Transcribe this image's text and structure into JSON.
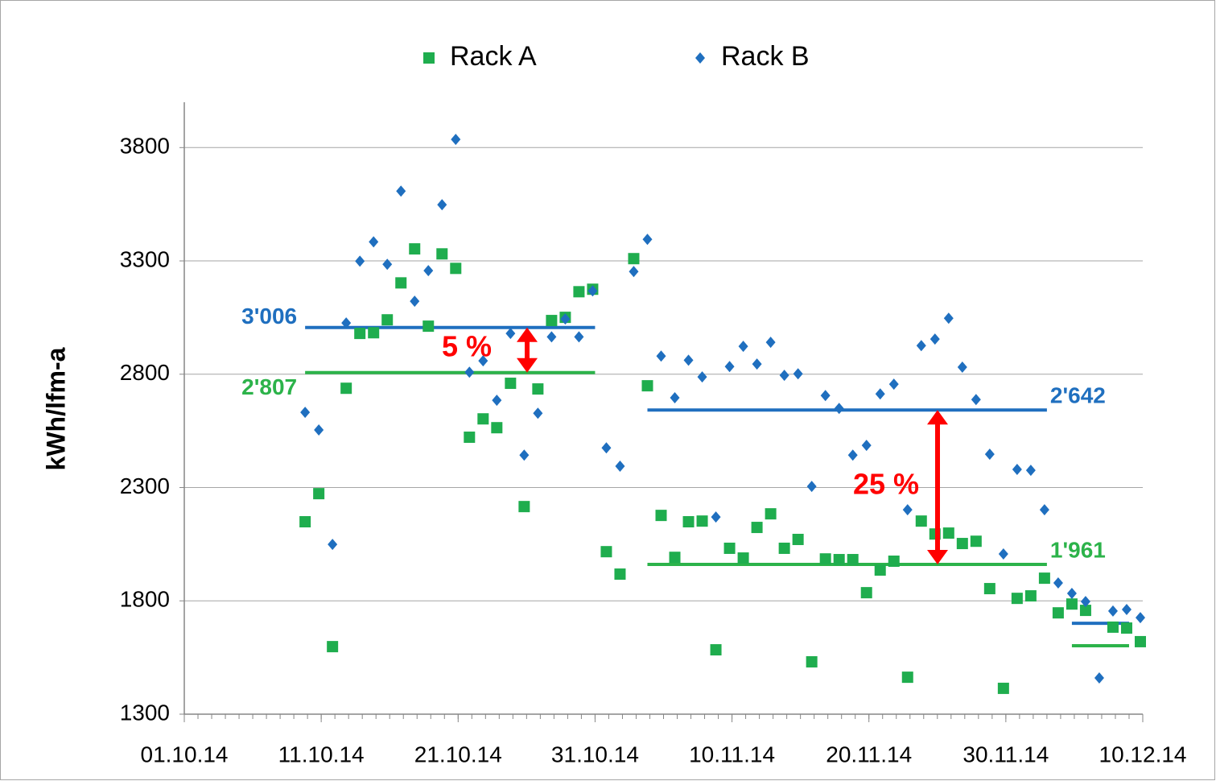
{
  "chart_data": {
    "type": "scatter",
    "y_label": "kWh/lfm-a",
    "x": [
      "10.10.14",
      "11.10.14",
      "12.10.14",
      "13.10.14",
      "14.10.14",
      "15.10.14",
      "16.10.14",
      "17.10.14",
      "18.10.14",
      "19.10.14",
      "20.10.14",
      "21.10.14",
      "22.10.14",
      "23.10.14",
      "24.10.14",
      "25.10.14",
      "26.10.14",
      "27.10.14",
      "28.10.14",
      "29.10.14",
      "30.10.14",
      "31.10.14",
      "01.11.14",
      "02.11.14",
      "03.11.14",
      "04.11.14",
      "05.11.14",
      "06.11.14",
      "07.11.14",
      "08.11.14",
      "09.11.14",
      "10.11.14",
      "11.11.14",
      "12.11.14",
      "13.11.14",
      "14.11.14",
      "15.11.14",
      "16.11.14",
      "17.11.14",
      "18.11.14",
      "19.11.14",
      "20.11.14",
      "21.11.14",
      "22.11.14",
      "23.11.14",
      "24.11.14",
      "25.11.14",
      "26.11.14",
      "27.11.14",
      "28.11.14",
      "29.11.14",
      "30.11.14",
      "01.12.14",
      "02.12.14",
      "03.12.14",
      "04.12.14",
      "05.12.14",
      "06.12.14",
      "07.12.14",
      "08.12.14",
      "09.12.14",
      "10.12.14"
    ],
    "series": [
      {
        "name": "Rack A",
        "color": "#1fad4e",
        "marker": "square",
        "values": [
          2149,
          2273,
          1598,
          2738,
          2980,
          2983,
          3040,
          3203,
          3353,
          3012,
          3331,
          3267,
          2522,
          2603,
          2564,
          2760,
          2216,
          2735,
          3037,
          3051,
          3164,
          3175,
          2017,
          1918,
          3310,
          2749,
          2177,
          1992,
          2149,
          2152,
          1584,
          2032,
          1989,
          2124,
          2184,
          2032,
          2071,
          1531,
          1985,
          1982,
          1982,
          1836,
          1936,
          1975,
          1463,
          2152,
          2095,
          2099,
          2053,
          2063,
          1854,
          1414,
          1811,
          1822,
          1900,
          1747,
          1786,
          1758,
          null,
          1684,
          1680,
          1620
        ]
      },
      {
        "name": "Rack B",
        "color": "#1f6fbf",
        "marker": "diamond",
        "values": [
          2632,
          2554,
          2049,
          3026,
          3299,
          3384,
          3285,
          3608,
          3122,
          3257,
          3548,
          3836,
          2809,
          2859,
          2685,
          2980,
          2443,
          2628,
          2965,
          3044,
          2965,
          3168,
          2475,
          2394,
          3253,
          3395,
          2880,
          2696,
          2862,
          2788,
          2170,
          2834,
          2923,
          2845,
          2941,
          2795,
          2802,
          2305,
          2706,
          2649,
          2443,
          2486,
          2713,
          2756,
          2202,
          2926,
          2955,
          3047,
          2831,
          2688,
          2447,
          2007,
          2380,
          2376,
          2202,
          1879,
          1833,
          1797,
          1460,
          1755,
          1762,
          1726
        ]
      }
    ],
    "mean_lines": [
      {
        "name": "Rack B",
        "color": "#1f6fbf",
        "segments": [
          {
            "start": "10.10.14",
            "end": "31.10.14",
            "value": 3006,
            "label": "3'006"
          },
          {
            "start": "04.11.14",
            "end": "03.12.14",
            "value": 2642,
            "label": "2'642"
          },
          {
            "start": "05.12.14",
            "end": "09.12.14",
            "value": 1701
          }
        ]
      },
      {
        "name": "Rack A",
        "color": "#2cb34a",
        "segments": [
          {
            "start": "10.10.14",
            "end": "31.10.14",
            "value": 2807,
            "label": "2'807"
          },
          {
            "start": "04.11.14",
            "end": "03.12.14",
            "value": 1961,
            "label": "1'961"
          },
          {
            "start": "05.12.14",
            "end": "09.12.14",
            "value": 1602
          }
        ]
      }
    ],
    "annotations": [
      {
        "text": "5 %",
        "color": "#ff0000"
      },
      {
        "text": "25 %",
        "color": "#ff0000"
      }
    ],
    "xlim": [
      "01.10.14",
      "10.12.14"
    ],
    "xticks": [
      "01.10.14",
      "11.10.14",
      "21.10.14",
      "31.10.14",
      "10.11.14",
      "20.11.14",
      "30.11.14",
      "10.12.14"
    ],
    "ylim": [
      1300,
      4000
    ],
    "yticks": [
      1300,
      1800,
      2300,
      2800,
      3300,
      3800
    ],
    "grid": true,
    "legend": "top"
  }
}
